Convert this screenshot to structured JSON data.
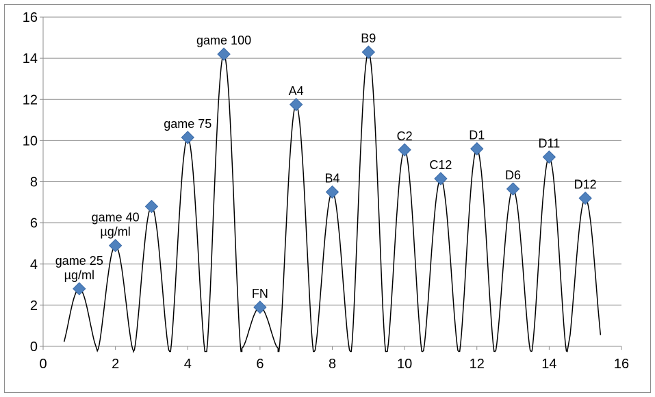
{
  "chart_data": {
    "type": "scatter",
    "title": "",
    "xlabel": "",
    "ylabel": "",
    "xlim": [
      0,
      16
    ],
    "ylim": [
      0,
      16
    ],
    "xticks": [
      "0",
      "2",
      "4",
      "6",
      "8",
      "10",
      "12",
      "14",
      "16"
    ],
    "yticks": [
      "0",
      "2",
      "4",
      "6",
      "8",
      "10",
      "12",
      "14",
      "16"
    ],
    "grid": "horizontal",
    "legend": "none",
    "marker_color": "#4f81bd",
    "line_color": "#000000",
    "points": [
      {
        "x": 1,
        "y": 2.8,
        "label": [
          "game 25",
          "µg/ml"
        ]
      },
      {
        "x": 2,
        "y": 4.9,
        "label": [
          "game 40",
          "µg/ml"
        ]
      },
      {
        "x": 3,
        "y": 6.8,
        "label": []
      },
      {
        "x": 4,
        "y": 10.15,
        "label": [
          "game 75"
        ]
      },
      {
        "x": 5,
        "y": 14.2,
        "label": [
          "game 100"
        ]
      },
      {
        "x": 6,
        "y": 1.9,
        "label": [
          "FN"
        ]
      },
      {
        "x": 7,
        "y": 11.75,
        "label": [
          "A4"
        ]
      },
      {
        "x": 8,
        "y": 7.5,
        "label": [
          "B4"
        ]
      },
      {
        "x": 9,
        "y": 14.3,
        "label": [
          "B9"
        ]
      },
      {
        "x": 10,
        "y": 9.55,
        "label": [
          "C2"
        ]
      },
      {
        "x": 11,
        "y": 8.15,
        "label": [
          "C12"
        ]
      },
      {
        "x": 12,
        "y": 9.6,
        "label": [
          "D1"
        ]
      },
      {
        "x": 13,
        "y": 7.65,
        "label": [
          "D6"
        ]
      },
      {
        "x": 14,
        "y": 9.2,
        "label": [
          "D11"
        ]
      },
      {
        "x": 15,
        "y": 7.2,
        "label": [
          "D12"
        ]
      }
    ]
  }
}
